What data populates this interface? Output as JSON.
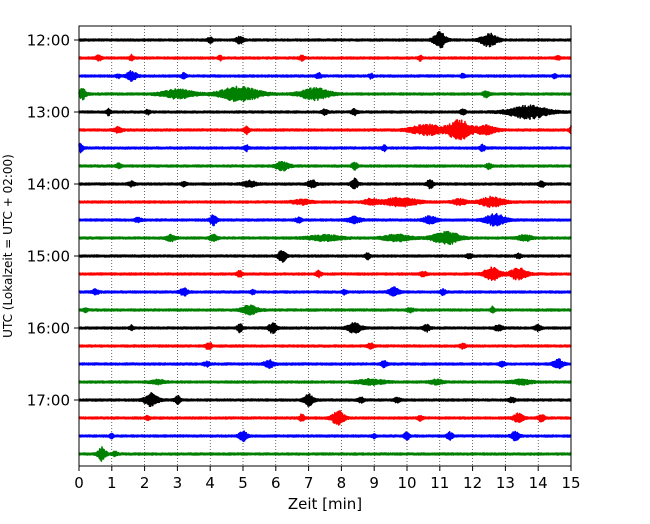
{
  "chart_data": {
    "type": "line",
    "title": "",
    "xlabel": "Zeit  [min]",
    "ylabel": "UTC (Lokalzeit = UTC + 02:00)",
    "xlim": [
      0,
      15
    ],
    "x_ticks": [
      0,
      1,
      2,
      3,
      4,
      5,
      6,
      7,
      8,
      9,
      10,
      11,
      12,
      13,
      14,
      15
    ],
    "x_tick_labels": [
      "0",
      "1",
      "2",
      "3",
      "4",
      "5",
      "6",
      "7",
      "8",
      "9",
      "10",
      "11",
      "12",
      "13",
      "14",
      "15"
    ],
    "y_tick_labels": [
      "12:00",
      "13:00",
      "14:00",
      "15:00",
      "16:00",
      "17:00"
    ],
    "trace_interval_minutes": 15,
    "vertical_grid": "dotted",
    "colors": {
      "cycle": [
        "#000000",
        "#ff0000",
        "#0000ff",
        "#008000"
      ],
      "axes": "#000000",
      "grid": "#000000",
      "background": "#ffffff"
    },
    "traces": [
      {
        "start": "12:00",
        "color": "#000000",
        "events": [
          {
            "x": 4.0,
            "amp": 0.18,
            "width": 0.08
          },
          {
            "x": 4.9,
            "amp": 0.22,
            "width": 0.12
          },
          {
            "x": 11.0,
            "amp": 0.55,
            "width": 0.18
          },
          {
            "x": 12.5,
            "amp": 0.45,
            "width": 0.25
          }
        ]
      },
      {
        "start": "12:15",
        "color": "#ff0000",
        "events": [
          {
            "x": 0.6,
            "amp": 0.15,
            "width": 0.1
          },
          {
            "x": 1.6,
            "amp": 0.18,
            "width": 0.06
          },
          {
            "x": 4.3,
            "amp": 0.15,
            "width": 0.06
          },
          {
            "x": 6.8,
            "amp": 0.14,
            "width": 0.08
          },
          {
            "x": 10.4,
            "amp": 0.16,
            "width": 0.06
          },
          {
            "x": 14.6,
            "amp": 0.14,
            "width": 0.08
          }
        ]
      },
      {
        "start": "12:30",
        "color": "#0000ff",
        "events": [
          {
            "x": 1.2,
            "amp": 0.12,
            "width": 0.06
          },
          {
            "x": 1.6,
            "amp": 0.35,
            "width": 0.15
          },
          {
            "x": 3.2,
            "amp": 0.2,
            "width": 0.08
          },
          {
            "x": 7.3,
            "amp": 0.2,
            "width": 0.08
          },
          {
            "x": 8.9,
            "amp": 0.16,
            "width": 0.06
          },
          {
            "x": 11.7,
            "amp": 0.14,
            "width": 0.06
          },
          {
            "x": 14.5,
            "amp": 0.15,
            "width": 0.06
          }
        ]
      },
      {
        "start": "12:45",
        "color": "#008000",
        "events": [
          {
            "x": 0.1,
            "amp": 0.35,
            "width": 0.12
          },
          {
            "x": 3.0,
            "amp": 0.3,
            "width": 0.5
          },
          {
            "x": 4.9,
            "amp": 0.5,
            "width": 0.6
          },
          {
            "x": 7.2,
            "amp": 0.4,
            "width": 0.45
          },
          {
            "x": 12.4,
            "amp": 0.2,
            "width": 0.1
          }
        ]
      },
      {
        "start": "13:00",
        "color": "#000000",
        "events": [
          {
            "x": 0.9,
            "amp": 0.2,
            "width": 0.06
          },
          {
            "x": 2.1,
            "amp": 0.15,
            "width": 0.06
          },
          {
            "x": 7.5,
            "amp": 0.18,
            "width": 0.08
          },
          {
            "x": 8.4,
            "amp": 0.18,
            "width": 0.1
          },
          {
            "x": 11.7,
            "amp": 0.22,
            "width": 0.08
          },
          {
            "x": 13.7,
            "amp": 0.45,
            "width": 0.6
          }
        ]
      },
      {
        "start": "13:15",
        "color": "#ff0000",
        "events": [
          {
            "x": 1.2,
            "amp": 0.18,
            "width": 0.12
          },
          {
            "x": 5.1,
            "amp": 0.28,
            "width": 0.08
          },
          {
            "x": 10.6,
            "amp": 0.35,
            "width": 0.5
          },
          {
            "x": 11.6,
            "amp": 0.7,
            "width": 0.35
          },
          {
            "x": 12.4,
            "amp": 0.3,
            "width": 0.3
          },
          {
            "x": 15.0,
            "amp": 0.3,
            "width": 0.05
          }
        ]
      },
      {
        "start": "13:30",
        "color": "#0000ff",
        "events": [
          {
            "x": 0.05,
            "amp": 0.3,
            "width": 0.08
          },
          {
            "x": 5.1,
            "amp": 0.2,
            "width": 0.06
          },
          {
            "x": 9.3,
            "amp": 0.2,
            "width": 0.06
          },
          {
            "x": 12.3,
            "amp": 0.2,
            "width": 0.08
          }
        ]
      },
      {
        "start": "13:45",
        "color": "#008000",
        "events": [
          {
            "x": 1.2,
            "amp": 0.15,
            "width": 0.08
          },
          {
            "x": 6.2,
            "amp": 0.3,
            "width": 0.2
          },
          {
            "x": 8.4,
            "amp": 0.3,
            "width": 0.08
          },
          {
            "x": 12.5,
            "amp": 0.18,
            "width": 0.08
          }
        ]
      },
      {
        "start": "14:00",
        "color": "#000000",
        "events": [
          {
            "x": 1.6,
            "amp": 0.15,
            "width": 0.1
          },
          {
            "x": 3.2,
            "amp": 0.15,
            "width": 0.08
          },
          {
            "x": 5.2,
            "amp": 0.2,
            "width": 0.2
          },
          {
            "x": 7.1,
            "amp": 0.28,
            "width": 0.12
          },
          {
            "x": 8.4,
            "amp": 0.35,
            "width": 0.1
          },
          {
            "x": 10.7,
            "amp": 0.3,
            "width": 0.1
          },
          {
            "x": 14.1,
            "amp": 0.22,
            "width": 0.08
          }
        ]
      },
      {
        "start": "14:15",
        "color": "#ff0000",
        "events": [
          {
            "x": 6.8,
            "amp": 0.15,
            "width": 0.3
          },
          {
            "x": 8.9,
            "amp": 0.2,
            "width": 0.2
          },
          {
            "x": 9.8,
            "amp": 0.3,
            "width": 0.5
          },
          {
            "x": 11.6,
            "amp": 0.2,
            "width": 0.2
          },
          {
            "x": 12.6,
            "amp": 0.35,
            "width": 0.35
          }
        ]
      },
      {
        "start": "14:30",
        "color": "#0000ff",
        "events": [
          {
            "x": 1.8,
            "amp": 0.15,
            "width": 0.1
          },
          {
            "x": 4.1,
            "amp": 0.35,
            "width": 0.1
          },
          {
            "x": 6.7,
            "amp": 0.15,
            "width": 0.1
          },
          {
            "x": 8.4,
            "amp": 0.2,
            "width": 0.2
          },
          {
            "x": 10.7,
            "amp": 0.25,
            "width": 0.2
          },
          {
            "x": 12.7,
            "amp": 0.4,
            "width": 0.3
          }
        ]
      },
      {
        "start": "14:45",
        "color": "#008000",
        "events": [
          {
            "x": 2.8,
            "amp": 0.2,
            "width": 0.15
          },
          {
            "x": 4.1,
            "amp": 0.2,
            "width": 0.12
          },
          {
            "x": 7.5,
            "amp": 0.18,
            "width": 0.5
          },
          {
            "x": 9.7,
            "amp": 0.22,
            "width": 0.4
          },
          {
            "x": 11.2,
            "amp": 0.45,
            "width": 0.4
          },
          {
            "x": 13.6,
            "amp": 0.2,
            "width": 0.2
          }
        ]
      },
      {
        "start": "15:00",
        "color": "#000000",
        "events": [
          {
            "x": 6.2,
            "amp": 0.45,
            "width": 0.12
          },
          {
            "x": 8.8,
            "amp": 0.2,
            "width": 0.08
          },
          {
            "x": 11.9,
            "amp": 0.15,
            "width": 0.1
          },
          {
            "x": 13.4,
            "amp": 0.15,
            "width": 0.08
          }
        ]
      },
      {
        "start": "15:15",
        "color": "#ff0000",
        "events": [
          {
            "x": 4.9,
            "amp": 0.2,
            "width": 0.08
          },
          {
            "x": 7.3,
            "amp": 0.2,
            "width": 0.08
          },
          {
            "x": 10.5,
            "amp": 0.15,
            "width": 0.1
          },
          {
            "x": 12.6,
            "amp": 0.45,
            "width": 0.25
          },
          {
            "x": 13.4,
            "amp": 0.4,
            "width": 0.25
          }
        ]
      },
      {
        "start": "15:30",
        "color": "#0000ff",
        "events": [
          {
            "x": 0.5,
            "amp": 0.18,
            "width": 0.1
          },
          {
            "x": 3.2,
            "amp": 0.25,
            "width": 0.12
          },
          {
            "x": 5.3,
            "amp": 0.15,
            "width": 0.06
          },
          {
            "x": 8.1,
            "amp": 0.15,
            "width": 0.06
          },
          {
            "x": 9.6,
            "amp": 0.3,
            "width": 0.15
          },
          {
            "x": 11.1,
            "amp": 0.18,
            "width": 0.08
          }
        ]
      },
      {
        "start": "15:45",
        "color": "#008000",
        "events": [
          {
            "x": 0.2,
            "amp": 0.15,
            "width": 0.06
          },
          {
            "x": 5.2,
            "amp": 0.3,
            "width": 0.25
          },
          {
            "x": 10.1,
            "amp": 0.15,
            "width": 0.1
          },
          {
            "x": 12.6,
            "amp": 0.2,
            "width": 0.06
          }
        ]
      },
      {
        "start": "16:00",
        "color": "#000000",
        "events": [
          {
            "x": 1.6,
            "amp": 0.15,
            "width": 0.06
          },
          {
            "x": 4.9,
            "amp": 0.28,
            "width": 0.08
          },
          {
            "x": 5.9,
            "amp": 0.35,
            "width": 0.12
          },
          {
            "x": 8.4,
            "amp": 0.35,
            "width": 0.2
          },
          {
            "x": 10.6,
            "amp": 0.22,
            "width": 0.1
          },
          {
            "x": 12.8,
            "amp": 0.2,
            "width": 0.12
          },
          {
            "x": 14.0,
            "amp": 0.2,
            "width": 0.1
          }
        ]
      },
      {
        "start": "16:15",
        "color": "#ff0000",
        "events": [
          {
            "x": 3.9,
            "amp": 0.15,
            "width": 0.06
          },
          {
            "x": 4.0,
            "amp": 0.18,
            "width": 0.06
          },
          {
            "x": 8.9,
            "amp": 0.2,
            "width": 0.1
          },
          {
            "x": 11.7,
            "amp": 0.18,
            "width": 0.08
          }
        ]
      },
      {
        "start": "16:30",
        "color": "#0000ff",
        "events": [
          {
            "x": 3.9,
            "amp": 0.15,
            "width": 0.1
          },
          {
            "x": 5.8,
            "amp": 0.25,
            "width": 0.15
          },
          {
            "x": 9.3,
            "amp": 0.2,
            "width": 0.1
          },
          {
            "x": 12.9,
            "amp": 0.15,
            "width": 0.1
          },
          {
            "x": 14.6,
            "amp": 0.35,
            "width": 0.15
          }
        ]
      },
      {
        "start": "16:45",
        "color": "#008000",
        "events": [
          {
            "x": 2.4,
            "amp": 0.15,
            "width": 0.2
          },
          {
            "x": 8.9,
            "amp": 0.18,
            "width": 0.4
          },
          {
            "x": 10.9,
            "amp": 0.15,
            "width": 0.2
          },
          {
            "x": 13.5,
            "amp": 0.15,
            "width": 0.3
          }
        ]
      },
      {
        "start": "17:00",
        "color": "#000000",
        "events": [
          {
            "x": 2.2,
            "amp": 0.45,
            "width": 0.2
          },
          {
            "x": 3.0,
            "amp": 0.3,
            "width": 0.08
          },
          {
            "x": 7.0,
            "amp": 0.4,
            "width": 0.15
          },
          {
            "x": 8.6,
            "amp": 0.15,
            "width": 0.1
          },
          {
            "x": 9.7,
            "amp": 0.15,
            "width": 0.1
          },
          {
            "x": 13.2,
            "amp": 0.15,
            "width": 0.1
          }
        ]
      },
      {
        "start": "17:15",
        "color": "#ff0000",
        "events": [
          {
            "x": 2.1,
            "amp": 0.15,
            "width": 0.06
          },
          {
            "x": 6.8,
            "amp": 0.25,
            "width": 0.08
          },
          {
            "x": 7.9,
            "amp": 0.5,
            "width": 0.18
          },
          {
            "x": 10.4,
            "amp": 0.15,
            "width": 0.08
          },
          {
            "x": 13.4,
            "amp": 0.3,
            "width": 0.15
          },
          {
            "x": 14.1,
            "amp": 0.25,
            "width": 0.1
          }
        ]
      },
      {
        "start": "17:30",
        "color": "#0000ff",
        "events": [
          {
            "x": 1.0,
            "amp": 0.15,
            "width": 0.06
          },
          {
            "x": 5.0,
            "amp": 0.35,
            "width": 0.12
          },
          {
            "x": 9.0,
            "amp": 0.15,
            "width": 0.06
          },
          {
            "x": 10.0,
            "amp": 0.3,
            "width": 0.08
          },
          {
            "x": 11.3,
            "amp": 0.25,
            "width": 0.1
          },
          {
            "x": 13.3,
            "amp": 0.3,
            "width": 0.12
          }
        ]
      },
      {
        "start": "17:45",
        "color": "#008000",
        "events": [
          {
            "x": 0.7,
            "amp": 0.45,
            "width": 0.12
          },
          {
            "x": 1.1,
            "amp": 0.15,
            "width": 0.08
          }
        ]
      }
    ]
  }
}
